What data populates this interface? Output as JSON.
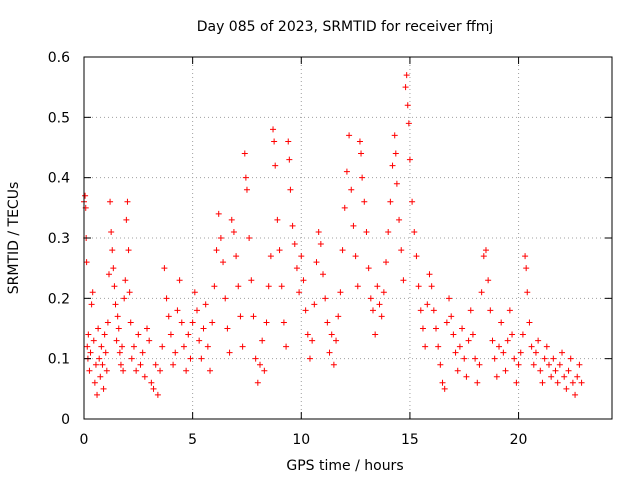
{
  "chart_data": {
    "type": "scatter",
    "title": "Day 085 of 2023, SRMTID for receiver ffmj",
    "xlabel": "GPS time / hours",
    "ylabel": "SRMTID / TECUs",
    "xlim": [
      0,
      24.3
    ],
    "ylim": [
      0,
      0.6
    ],
    "xticks": [
      0,
      5,
      10,
      15,
      20
    ],
    "xtick_labels": [
      "0",
      "5",
      "10",
      "15",
      "20"
    ],
    "yticks": [
      0,
      0.1,
      0.2,
      0.3,
      0.4,
      0.5,
      0.6
    ],
    "ytick_labels": [
      "0",
      "0.1",
      "0.2",
      "0.3",
      "0.4",
      "0.5",
      "0.6"
    ],
    "grid": true,
    "marker": "+",
    "series": [
      {
        "name": "SRMTID",
        "color": "#ff0000",
        "points": [
          [
            0.0,
            0.36
          ],
          [
            0.05,
            0.37
          ],
          [
            0.08,
            0.35
          ],
          [
            0.1,
            0.3
          ],
          [
            0.12,
            0.26
          ],
          [
            0.15,
            0.12
          ],
          [
            0.18,
            0.1
          ],
          [
            0.2,
            0.14
          ],
          [
            0.25,
            0.08
          ],
          [
            0.3,
            0.11
          ],
          [
            0.35,
            0.19
          ],
          [
            0.4,
            0.21
          ],
          [
            0.45,
            0.13
          ],
          [
            0.5,
            0.06
          ],
          [
            0.55,
            0.09
          ],
          [
            0.6,
            0.04
          ],
          [
            0.65,
            0.15
          ],
          [
            0.7,
            0.1
          ],
          [
            0.75,
            0.07
          ],
          [
            0.8,
            0.12
          ],
          [
            0.85,
            0.09
          ],
          [
            0.9,
            0.05
          ],
          [
            0.95,
            0.14
          ],
          [
            1.0,
            0.11
          ],
          [
            1.05,
            0.08
          ],
          [
            1.1,
            0.16
          ],
          [
            1.15,
            0.24
          ],
          [
            1.2,
            0.36
          ],
          [
            1.25,
            0.31
          ],
          [
            1.3,
            0.28
          ],
          [
            1.35,
            0.25
          ],
          [
            1.4,
            0.22
          ],
          [
            1.45,
            0.19
          ],
          [
            1.5,
            0.13
          ],
          [
            1.55,
            0.17
          ],
          [
            1.6,
            0.15
          ],
          [
            1.65,
            0.11
          ],
          [
            1.7,
            0.09
          ],
          [
            1.75,
            0.12
          ],
          [
            1.8,
            0.08
          ],
          [
            1.85,
            0.2
          ],
          [
            1.9,
            0.23
          ],
          [
            1.95,
            0.33
          ],
          [
            2.0,
            0.36
          ],
          [
            2.05,
            0.28
          ],
          [
            2.1,
            0.21
          ],
          [
            2.15,
            0.16
          ],
          [
            2.2,
            0.1
          ],
          [
            2.3,
            0.12
          ],
          [
            2.4,
            0.08
          ],
          [
            2.5,
            0.14
          ],
          [
            2.6,
            0.09
          ],
          [
            2.7,
            0.11
          ],
          [
            2.8,
            0.07
          ],
          [
            2.9,
            0.15
          ],
          [
            3.0,
            0.13
          ],
          [
            3.1,
            0.06
          ],
          [
            3.2,
            0.05
          ],
          [
            3.3,
            0.09
          ],
          [
            3.4,
            0.04
          ],
          [
            3.5,
            0.08
          ],
          [
            3.6,
            0.12
          ],
          [
            3.7,
            0.25
          ],
          [
            3.8,
            0.2
          ],
          [
            3.9,
            0.17
          ],
          [
            4.0,
            0.14
          ],
          [
            4.1,
            0.09
          ],
          [
            4.2,
            0.11
          ],
          [
            4.3,
            0.18
          ],
          [
            4.4,
            0.23
          ],
          [
            4.5,
            0.16
          ],
          [
            4.6,
            0.12
          ],
          [
            4.7,
            0.08
          ],
          [
            4.8,
            0.14
          ],
          [
            4.9,
            0.1
          ],
          [
            5.0,
            0.16
          ],
          [
            5.1,
            0.21
          ],
          [
            5.2,
            0.18
          ],
          [
            5.3,
            0.13
          ],
          [
            5.4,
            0.1
          ],
          [
            5.5,
            0.15
          ],
          [
            5.6,
            0.19
          ],
          [
            5.7,
            0.12
          ],
          [
            5.8,
            0.08
          ],
          [
            5.9,
            0.16
          ],
          [
            6.0,
            0.22
          ],
          [
            6.1,
            0.28
          ],
          [
            6.2,
            0.34
          ],
          [
            6.3,
            0.3
          ],
          [
            6.4,
            0.26
          ],
          [
            6.5,
            0.2
          ],
          [
            6.6,
            0.15
          ],
          [
            6.7,
            0.11
          ],
          [
            6.8,
            0.33
          ],
          [
            6.9,
            0.31
          ],
          [
            7.0,
            0.27
          ],
          [
            7.1,
            0.22
          ],
          [
            7.2,
            0.17
          ],
          [
            7.3,
            0.12
          ],
          [
            7.4,
            0.44
          ],
          [
            7.45,
            0.4
          ],
          [
            7.5,
            0.38
          ],
          [
            7.6,
            0.3
          ],
          [
            7.7,
            0.23
          ],
          [
            7.8,
            0.17
          ],
          [
            7.9,
            0.1
          ],
          [
            8.0,
            0.06
          ],
          [
            8.1,
            0.09
          ],
          [
            8.2,
            0.13
          ],
          [
            8.3,
            0.08
          ],
          [
            8.4,
            0.16
          ],
          [
            8.5,
            0.22
          ],
          [
            8.6,
            0.27
          ],
          [
            8.7,
            0.48
          ],
          [
            8.75,
            0.46
          ],
          [
            8.8,
            0.42
          ],
          [
            8.9,
            0.33
          ],
          [
            9.0,
            0.28
          ],
          [
            9.1,
            0.22
          ],
          [
            9.2,
            0.16
          ],
          [
            9.3,
            0.12
          ],
          [
            9.4,
            0.46
          ],
          [
            9.45,
            0.43
          ],
          [
            9.5,
            0.38
          ],
          [
            9.6,
            0.32
          ],
          [
            9.7,
            0.29
          ],
          [
            9.8,
            0.25
          ],
          [
            9.9,
            0.21
          ],
          [
            10.0,
            0.27
          ],
          [
            10.1,
            0.23
          ],
          [
            10.2,
            0.18
          ],
          [
            10.3,
            0.14
          ],
          [
            10.4,
            0.1
          ],
          [
            10.5,
            0.13
          ],
          [
            10.6,
            0.19
          ],
          [
            10.7,
            0.26
          ],
          [
            10.8,
            0.31
          ],
          [
            10.9,
            0.29
          ],
          [
            11.0,
            0.24
          ],
          [
            11.1,
            0.2
          ],
          [
            11.2,
            0.16
          ],
          [
            11.3,
            0.11
          ],
          [
            11.4,
            0.14
          ],
          [
            11.5,
            0.09
          ],
          [
            11.6,
            0.13
          ],
          [
            11.7,
            0.17
          ],
          [
            11.8,
            0.21
          ],
          [
            11.9,
            0.28
          ],
          [
            12.0,
            0.35
          ],
          [
            12.1,
            0.41
          ],
          [
            12.2,
            0.47
          ],
          [
            12.3,
            0.38
          ],
          [
            12.4,
            0.32
          ],
          [
            12.5,
            0.27
          ],
          [
            12.6,
            0.22
          ],
          [
            12.7,
            0.46
          ],
          [
            12.75,
            0.44
          ],
          [
            12.8,
            0.4
          ],
          [
            12.9,
            0.36
          ],
          [
            13.0,
            0.31
          ],
          [
            13.1,
            0.25
          ],
          [
            13.2,
            0.2
          ],
          [
            13.3,
            0.18
          ],
          [
            13.4,
            0.14
          ],
          [
            13.5,
            0.22
          ],
          [
            13.6,
            0.19
          ],
          [
            13.7,
            0.17
          ],
          [
            13.8,
            0.21
          ],
          [
            13.9,
            0.26
          ],
          [
            14.0,
            0.31
          ],
          [
            14.1,
            0.36
          ],
          [
            14.2,
            0.42
          ],
          [
            14.3,
            0.47
          ],
          [
            14.35,
            0.44
          ],
          [
            14.4,
            0.39
          ],
          [
            14.5,
            0.33
          ],
          [
            14.6,
            0.28
          ],
          [
            14.7,
            0.23
          ],
          [
            14.8,
            0.55
          ],
          [
            14.85,
            0.57
          ],
          [
            14.9,
            0.52
          ],
          [
            14.95,
            0.49
          ],
          [
            15.0,
            0.43
          ],
          [
            15.1,
            0.36
          ],
          [
            15.2,
            0.31
          ],
          [
            15.3,
            0.27
          ],
          [
            15.4,
            0.22
          ],
          [
            15.5,
            0.18
          ],
          [
            15.6,
            0.15
          ],
          [
            15.7,
            0.12
          ],
          [
            15.8,
            0.19
          ],
          [
            15.9,
            0.24
          ],
          [
            16.0,
            0.22
          ],
          [
            16.1,
            0.18
          ],
          [
            16.2,
            0.15
          ],
          [
            16.3,
            0.12
          ],
          [
            16.4,
            0.09
          ],
          [
            16.5,
            0.06
          ],
          [
            16.6,
            0.05
          ],
          [
            16.7,
            0.16
          ],
          [
            16.8,
            0.2
          ],
          [
            16.9,
            0.17
          ],
          [
            17.0,
            0.14
          ],
          [
            17.1,
            0.11
          ],
          [
            17.2,
            0.08
          ],
          [
            17.3,
            0.12
          ],
          [
            17.4,
            0.15
          ],
          [
            17.5,
            0.1
          ],
          [
            17.6,
            0.07
          ],
          [
            17.7,
            0.13
          ],
          [
            17.8,
            0.18
          ],
          [
            17.9,
            0.14
          ],
          [
            18.0,
            0.1
          ],
          [
            18.1,
            0.06
          ],
          [
            18.2,
            0.09
          ],
          [
            18.3,
            0.21
          ],
          [
            18.4,
            0.27
          ],
          [
            18.5,
            0.28
          ],
          [
            18.6,
            0.23
          ],
          [
            18.7,
            0.18
          ],
          [
            18.8,
            0.13
          ],
          [
            18.9,
            0.1
          ],
          [
            19.0,
            0.07
          ],
          [
            19.1,
            0.12
          ],
          [
            19.2,
            0.16
          ],
          [
            19.3,
            0.11
          ],
          [
            19.4,
            0.08
          ],
          [
            19.5,
            0.13
          ],
          [
            19.6,
            0.18
          ],
          [
            19.7,
            0.14
          ],
          [
            19.8,
            0.1
          ],
          [
            19.9,
            0.06
          ],
          [
            20.0,
            0.09
          ],
          [
            20.1,
            0.11
          ],
          [
            20.2,
            0.14
          ],
          [
            20.3,
            0.27
          ],
          [
            20.35,
            0.25
          ],
          [
            20.4,
            0.21
          ],
          [
            20.5,
            0.16
          ],
          [
            20.6,
            0.12
          ],
          [
            20.7,
            0.09
          ],
          [
            20.8,
            0.11
          ],
          [
            20.9,
            0.13
          ],
          [
            21.0,
            0.08
          ],
          [
            21.1,
            0.06
          ],
          [
            21.2,
            0.1
          ],
          [
            21.3,
            0.12
          ],
          [
            21.4,
            0.09
          ],
          [
            21.5,
            0.07
          ],
          [
            21.6,
            0.1
          ],
          [
            21.7,
            0.08
          ],
          [
            21.8,
            0.06
          ],
          [
            21.9,
            0.09
          ],
          [
            22.0,
            0.11
          ],
          [
            22.1,
            0.07
          ],
          [
            22.2,
            0.05
          ],
          [
            22.3,
            0.08
          ],
          [
            22.4,
            0.1
          ],
          [
            22.5,
            0.06
          ],
          [
            22.6,
            0.04
          ],
          [
            22.7,
            0.07
          ],
          [
            22.8,
            0.09
          ],
          [
            22.9,
            0.06
          ]
        ]
      }
    ]
  }
}
